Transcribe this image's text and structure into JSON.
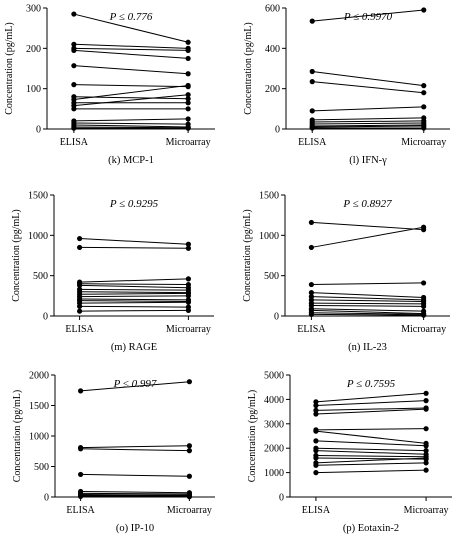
{
  "figure": {
    "ylabel": "Concentration (pg/mL)",
    "categories": [
      "ELISA",
      "Microarray"
    ]
  },
  "chart_data": [
    {
      "type": "line",
      "panel": "(k)",
      "title": "(k)  MCP-1",
      "annotation": "P ≤ 0.776",
      "ylabel": "Concentration (pg/mL)",
      "ylim": [
        0,
        300
      ],
      "yticks": [
        0,
        100,
        200,
        300
      ],
      "categories": [
        "ELISA",
        "Microarray"
      ],
      "series": [
        {
          "values": [
            285,
            215
          ]
        },
        {
          "values": [
            210,
            200
          ]
        },
        {
          "values": [
            200,
            195
          ]
        },
        {
          "values": [
            195,
            175
          ]
        },
        {
          "values": [
            157,
            137
          ]
        },
        {
          "values": [
            110,
            105
          ]
        },
        {
          "values": [
            80,
            75
          ]
        },
        {
          "values": [
            73,
            108
          ]
        },
        {
          "values": [
            65,
            65
          ]
        },
        {
          "values": [
            58,
            85
          ]
        },
        {
          "values": [
            50,
            50
          ]
        },
        {
          "values": [
            20,
            25
          ]
        },
        {
          "values": [
            15,
            12
          ]
        },
        {
          "values": [
            10,
            5
          ]
        },
        {
          "values": [
            5,
            3
          ]
        },
        {
          "values": [
            2,
            2
          ]
        }
      ]
    },
    {
      "type": "line",
      "panel": "(l)",
      "title": "(l)  IFN-γ",
      "annotation": "P ≤ 0.9970",
      "ylabel": "Concentration (pg/mL)",
      "ylim": [
        0,
        600
      ],
      "yticks": [
        0,
        200,
        400,
        600
      ],
      "categories": [
        "ELISA",
        "Microarray"
      ],
      "series": [
        {
          "values": [
            535,
            590
          ]
        },
        {
          "values": [
            285,
            215
          ]
        },
        {
          "values": [
            235,
            180
          ]
        },
        {
          "values": [
            90,
            110
          ]
        },
        {
          "values": [
            45,
            55
          ]
        },
        {
          "values": [
            35,
            40
          ]
        },
        {
          "values": [
            25,
            30
          ]
        },
        {
          "values": [
            15,
            20
          ]
        },
        {
          "values": [
            10,
            15
          ]
        },
        {
          "values": [
            5,
            5
          ]
        }
      ]
    },
    {
      "type": "line",
      "panel": "(m)",
      "title": "(m)  RAGE",
      "annotation": "P ≤ 0.9295",
      "ylabel": "Concentration (pg/mL)",
      "ylim": [
        0,
        1500
      ],
      "yticks": [
        0,
        500,
        1000,
        1500
      ],
      "categories": [
        "ELISA",
        "Microarray"
      ],
      "series": [
        {
          "values": [
            960,
            890
          ]
        },
        {
          "values": [
            850,
            840
          ]
        },
        {
          "values": [
            420,
            460
          ]
        },
        {
          "values": [
            400,
            390
          ]
        },
        {
          "values": [
            380,
            350
          ]
        },
        {
          "values": [
            330,
            320
          ]
        },
        {
          "values": [
            300,
            290
          ]
        },
        {
          "values": [
            270,
            280
          ]
        },
        {
          "values": [
            240,
            250
          ]
        },
        {
          "values": [
            210,
            200
          ]
        },
        {
          "values": [
            190,
            180
          ]
        },
        {
          "values": [
            160,
            170
          ]
        },
        {
          "values": [
            120,
            110
          ]
        },
        {
          "values": [
            60,
            70
          ]
        }
      ]
    },
    {
      "type": "line",
      "panel": "(n)",
      "title": "(n)  IL-23",
      "annotation": "P ≤ 0.8927",
      "ylabel": "Concentration (pg/mL)",
      "ylim": [
        0,
        1500
      ],
      "yticks": [
        0,
        500,
        1000,
        1500
      ],
      "categories": [
        "ELISA",
        "Microarray"
      ],
      "series": [
        {
          "values": [
            1160,
            1070
          ]
        },
        {
          "values": [
            850,
            1100
          ]
        },
        {
          "values": [
            390,
            410
          ]
        },
        {
          "values": [
            290,
            230
          ]
        },
        {
          "values": [
            240,
            200
          ]
        },
        {
          "values": [
            200,
            180
          ]
        },
        {
          "values": [
            160,
            150
          ]
        },
        {
          "values": [
            130,
            120
          ]
        },
        {
          "values": [
            90,
            60
          ]
        },
        {
          "values": [
            70,
            30
          ]
        },
        {
          "values": [
            40,
            20
          ]
        },
        {
          "values": [
            20,
            10
          ]
        }
      ]
    },
    {
      "type": "line",
      "panel": "(o)",
      "title": "(o)  IP-10",
      "annotation": "P ≤ 0.997",
      "ylabel": "Concentration (pg/mL)",
      "ylim": [
        0,
        2000
      ],
      "yticks": [
        0,
        500,
        1000,
        1500,
        2000
      ],
      "categories": [
        "ELISA",
        "Microarray"
      ],
      "series": [
        {
          "values": [
            1740,
            1890
          ]
        },
        {
          "values": [
            810,
            840
          ]
        },
        {
          "values": [
            790,
            760
          ]
        },
        {
          "values": [
            370,
            340
          ]
        },
        {
          "values": [
            90,
            70
          ]
        },
        {
          "values": [
            60,
            50
          ]
        },
        {
          "values": [
            40,
            30
          ]
        },
        {
          "values": [
            30,
            20
          ]
        },
        {
          "values": [
            20,
            10
          ]
        },
        {
          "values": [
            10,
            5
          ]
        }
      ]
    },
    {
      "type": "line",
      "panel": "(p)",
      "title": "(p)  Eotaxin-2",
      "annotation": "P ≤ 0.7595",
      "ylabel": "Concentration (pg/mL)",
      "ylim": [
        0,
        5000
      ],
      "yticks": [
        0,
        1000,
        2000,
        3000,
        4000,
        5000
      ],
      "categories": [
        "ELISA",
        "Microarray"
      ],
      "series": [
        {
          "values": [
            3900,
            4250
          ]
        },
        {
          "values": [
            3750,
            3950
          ]
        },
        {
          "values": [
            3550,
            3650
          ]
        },
        {
          "values": [
            3400,
            3600
          ]
        },
        {
          "values": [
            2750,
            2800
          ]
        },
        {
          "values": [
            2700,
            2200
          ]
        },
        {
          "values": [
            2300,
            2100
          ]
        },
        {
          "values": [
            2000,
            1900
          ]
        },
        {
          "values": [
            1900,
            1750
          ]
        },
        {
          "values": [
            1700,
            1650
          ]
        },
        {
          "values": [
            1600,
            1550
          ]
        },
        {
          "values": [
            1400,
            1600
          ]
        },
        {
          "values": [
            1300,
            1400
          ]
        },
        {
          "values": [
            1000,
            1100
          ]
        }
      ]
    }
  ]
}
